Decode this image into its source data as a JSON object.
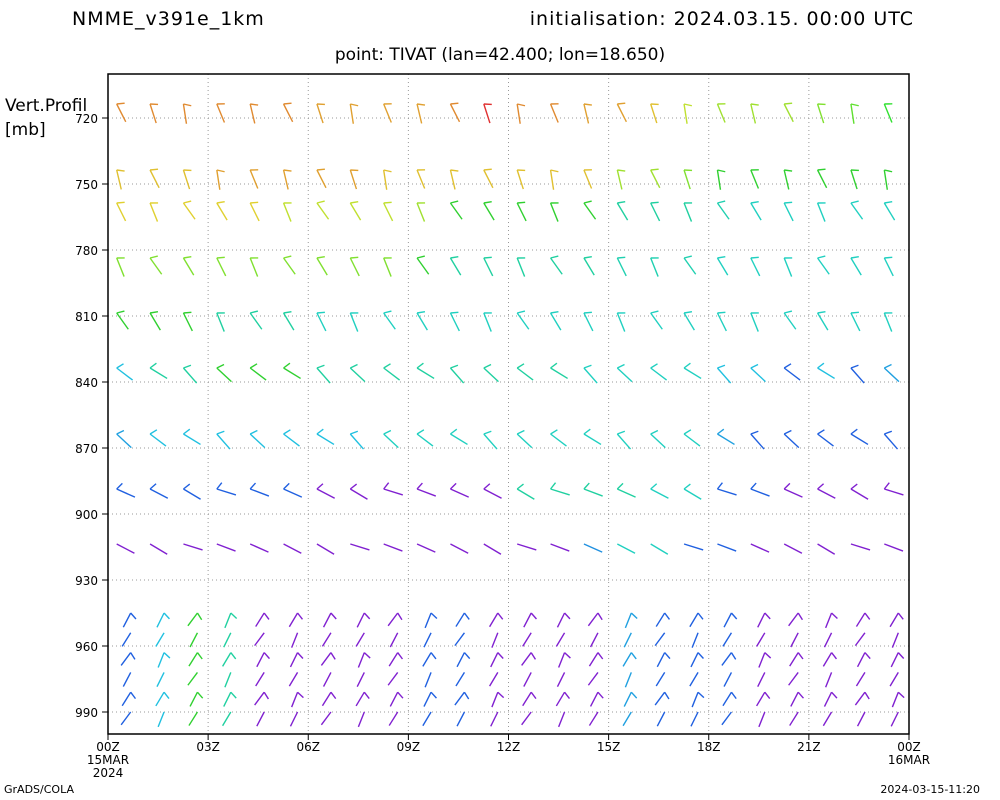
{
  "header": {
    "model": "NMME_v391e_1km",
    "init": "initialisation:  2024.03.15.  00:00  UTC",
    "point": "point:  TIVAT  (lan=42.400;  lon=18.650)"
  },
  "yaxis": {
    "title_line1": "Vert.Profil",
    "title_line2": "[mb]"
  },
  "footer": {
    "left": "GrADS/COLA",
    "right": "2024-03-15-11:20"
  },
  "chart_data": {
    "type": "wind-barb profile (time vs pressure)",
    "y_ticks": [
      720,
      750,
      780,
      810,
      840,
      870,
      900,
      930,
      960,
      990
    ],
    "ylim": [
      1000,
      700
    ],
    "x_ticks": [
      {
        "hour": 0,
        "label": "00Z",
        "sub1": "15MAR",
        "sub2": "2024"
      },
      {
        "hour": 3,
        "label": "03Z"
      },
      {
        "hour": 6,
        "label": "06Z"
      },
      {
        "hour": 9,
        "label": "09Z"
      },
      {
        "hour": 12,
        "label": "12Z"
      },
      {
        "hour": 15,
        "label": "15Z"
      },
      {
        "hour": 18,
        "label": "18Z"
      },
      {
        "hour": 21,
        "label": "21Z"
      },
      {
        "hour": 24,
        "label": "00Z",
        "sub1": "16MAR"
      }
    ],
    "xlim": [
      0,
      24
    ],
    "grid": true,
    "barb_times_hours": [
      0.5,
      1.5,
      2.5,
      3.5,
      4.5,
      5.5,
      6.5,
      7.5,
      8.5,
      9.5,
      10.5,
      11.5,
      12.5,
      13.5,
      14.5,
      15.5,
      16.5,
      17.5,
      18.5,
      19.5,
      20.5,
      21.5,
      22.5,
      23.5
    ],
    "levels": [
      {
        "pressure": 720,
        "colors": [
          "#e08a30",
          "#e08a30",
          "#e08a30",
          "#e08a30",
          "#e08a30",
          "#e08a30",
          "#e0a030",
          "#e0a030",
          "#e0a030",
          "#e0a030",
          "#e08a30",
          "#e03030",
          "#e08a30",
          "#e08a30",
          "#e0a030",
          "#e0a030",
          "#e0c030",
          "#c0e030",
          "#a0e030",
          "#a0e030",
          "#a0e030",
          "#80e030",
          "#60e030",
          "#30e030"
        ]
      },
      {
        "pressure": 750,
        "colors": [
          "#e0c030",
          "#e0c030",
          "#e0c030",
          "#e0a030",
          "#e0a030",
          "#e0a030",
          "#e0a030",
          "#e0a030",
          "#e0c030",
          "#e0c030",
          "#e0c030",
          "#e0c030",
          "#e0c030",
          "#e0c030",
          "#e0c030",
          "#a0e030",
          "#a0e030",
          "#80e030",
          "#30d030",
          "#30d030",
          "#30d030",
          "#30d030",
          "#30d030",
          "#30d030"
        ]
      },
      {
        "pressure": 765,
        "colors": [
          "#e0d030",
          "#e0d030",
          "#e0d030",
          "#e0d030",
          "#e0d030",
          "#c0e030",
          "#c0e030",
          "#c0e030",
          "#c0e030",
          "#a0e030",
          "#30d030",
          "#30d030",
          "#30d030",
          "#30d030",
          "#30d030",
          "#20d0a0",
          "#20d0a0",
          "#20d0a0",
          "#20d0b0",
          "#20d0c0",
          "#20d0c0",
          "#20d0c0",
          "#20d0c0",
          "#20d0c0"
        ]
      },
      {
        "pressure": 790,
        "colors": [
          "#80e030",
          "#80e030",
          "#80e030",
          "#80e030",
          "#80e030",
          "#80e030",
          "#80e030",
          "#80e030",
          "#80e030",
          "#30d030",
          "#20d0a0",
          "#20d0a0",
          "#20d0a0",
          "#20d0a0",
          "#20d0a0",
          "#20d0b0",
          "#20d0b0",
          "#20d0b0",
          "#20d0c0",
          "#20d0c0",
          "#20d0c0",
          "#20d0c0",
          "#20d0c0",
          "#20d0c0"
        ]
      },
      {
        "pressure": 815,
        "colors": [
          "#30d030",
          "#30d030",
          "#30d030",
          "#20d0a0",
          "#20d0a0",
          "#20d0a0",
          "#20d0c0",
          "#20d0c0",
          "#20d0c0",
          "#20d0c0",
          "#20d0c0",
          "#20d0c0",
          "#20d0c0",
          "#20d0c0",
          "#20d0c0",
          "#20d0c0",
          "#20d0c0",
          "#20d0c0",
          "#20d0c0",
          "#20d0c0",
          "#20d0c0",
          "#20d0c0",
          "#20d0c0",
          "#20d0c0"
        ]
      },
      {
        "pressure": 840,
        "colors": [
          "#20c0e0",
          "#20d0a0",
          "#20d0a0",
          "#30d030",
          "#30d030",
          "#30d030",
          "#20d0a0",
          "#20d0a0",
          "#20d0a0",
          "#20d0a0",
          "#20d0a0",
          "#20d0a0",
          "#20d0a0",
          "#20d0a0",
          "#20d0c0",
          "#20d0c0",
          "#20d0c0",
          "#20d0c0",
          "#20c0e0",
          "#20c0e0",
          "#2060e0",
          "#20c0e0",
          "#2060e0",
          "#20a0e0"
        ]
      },
      {
        "pressure": 870,
        "colors": [
          "#20a0e0",
          "#20c0e0",
          "#20c0e0",
          "#20c0e0",
          "#20c0e0",
          "#20c0e0",
          "#20c0e0",
          "#20c0e0",
          "#20d0c0",
          "#20d0c0",
          "#20d0c0",
          "#20d0c0",
          "#20d0c0",
          "#20d0c0",
          "#20d0c0",
          "#20d0c0",
          "#20d0c0",
          "#20d0c0",
          "#20a0e0",
          "#2060e0",
          "#2060e0",
          "#2060e0",
          "#2060e0",
          "#2060e0"
        ]
      },
      {
        "pressure": 895,
        "colors": [
          "#2060e0",
          "#2060e0",
          "#2060e0",
          "#2060e0",
          "#2060e0",
          "#2060e0",
          "#8020d0",
          "#8020d0",
          "#8020d0",
          "#8020d0",
          "#8020d0",
          "#8020d0",
          "#20d0a0",
          "#20d0a0",
          "#20d0a0",
          "#20d0a0",
          "#20d0c0",
          "#20d0c0",
          "#2060e0",
          "#2060e0",
          "#8020d0",
          "#8020d0",
          "#8020d0",
          "#8020d0"
        ]
      },
      {
        "pressure": 920,
        "colors": [
          "#8020d0",
          "#8020d0",
          "#8020d0",
          "#8020d0",
          "#8020d0",
          "#8020d0",
          "#8020d0",
          "#8020d0",
          "#8020d0",
          "#8020d0",
          "#8020d0",
          "#8020d0",
          "#8020d0",
          "#8020d0",
          "#2090e0",
          "#20d0c0",
          "#20d0c0",
          "#2060e0",
          "#2060e0",
          "#8020d0",
          "#8020d0",
          "#8020d0",
          "#8020d0",
          "#8020d0"
        ]
      }
    ],
    "low_levels_note": "",
    "low_level_colors": [
      "#2060e0",
      "#20c0e0",
      "#30d030",
      "#20d0a0",
      "#8020d0",
      "#8020d0",
      "#8020d0",
      "#8020d0",
      "#8020d0",
      "#2060e0",
      "#2060e0",
      "#8020d0",
      "#8020d0",
      "#8020d0",
      "#8020d0",
      "#20a0e0",
      "#2060e0",
      "#2060e0",
      "#2060e0",
      "#8020d0",
      "#8020d0",
      "#8020d0",
      "#8020d0",
      "#8020d0"
    ]
  }
}
